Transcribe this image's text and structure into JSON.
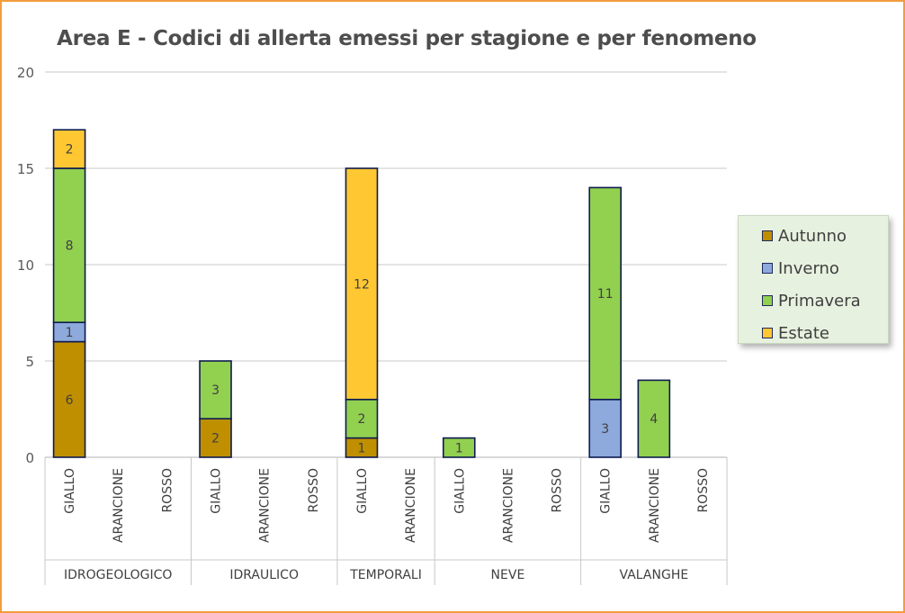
{
  "chart_data": {
    "type": "bar",
    "stacked": true,
    "title": "Area E - Codici di allerta emessi per stagione e per fenomeno",
    "ylim": [
      0,
      20
    ],
    "yticks": [
      0,
      5,
      10,
      15,
      20
    ],
    "grid": true,
    "legend_position": "right",
    "groups": [
      {
        "name": "IDROGEOLOGICO",
        "categories": [
          "GIALLO",
          "ARANCIONE",
          "ROSSO"
        ]
      },
      {
        "name": "IDRAULICO",
        "categories": [
          "GIALLO",
          "ARANCIONE",
          "ROSSO"
        ]
      },
      {
        "name": "TEMPORALI",
        "categories": [
          "GIALLO",
          "ARANCIONE"
        ]
      },
      {
        "name": "NEVE",
        "categories": [
          "GIALLO",
          "ARANCIONE",
          "ROSSO"
        ]
      },
      {
        "name": "VALANGHE",
        "categories": [
          "GIALLO",
          "ARANCIONE",
          "ROSSO"
        ]
      }
    ],
    "categories": [
      "GIALLO",
      "ARANCIONE",
      "ROSSO",
      "GIALLO",
      "ARANCIONE",
      "ROSSO",
      "GIALLO",
      "ARANCIONE",
      "GIALLO",
      "ARANCIONE",
      "ROSSO",
      "GIALLO",
      "ARANCIONE",
      "ROSSO"
    ],
    "series": [
      {
        "name": "Autunno",
        "color": "#bf8f00",
        "values": [
          6,
          0,
          0,
          2,
          0,
          0,
          1,
          0,
          0,
          0,
          0,
          0,
          0,
          0
        ]
      },
      {
        "name": "Inverno",
        "color": "#8ea9db",
        "values": [
          1,
          0,
          0,
          0,
          0,
          0,
          0,
          0,
          0,
          0,
          0,
          3,
          0,
          0
        ]
      },
      {
        "name": "Primavera",
        "color": "#92d050",
        "values": [
          8,
          0,
          0,
          3,
          0,
          0,
          2,
          0,
          1,
          0,
          0,
          11,
          4,
          0
        ]
      },
      {
        "name": "Estate",
        "color": "#ffc832",
        "values": [
          2,
          0,
          0,
          0,
          0,
          0,
          12,
          0,
          0,
          0,
          0,
          0,
          0,
          0
        ]
      }
    ]
  }
}
